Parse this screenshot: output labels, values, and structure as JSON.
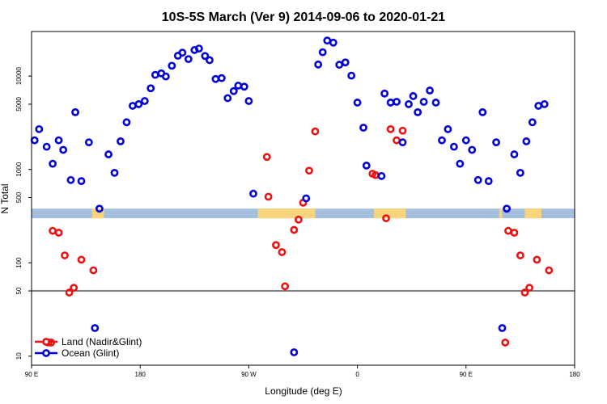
{
  "chart_data": {
    "type": "scatter",
    "title": "10S-5S March (Ver 9)   2014-09-06 to 2020-01-21",
    "xlabel": "Longitude (deg E)",
    "ylabel": "N Total",
    "xlim": [
      90,
      450
    ],
    "ylim": [
      8,
      30000
    ],
    "y_scale": "log",
    "x_ticks": [
      {
        "value": 90,
        "label": "90 E"
      },
      {
        "value": 162,
        "label": "180"
      },
      {
        "value": 234,
        "label": "90 W"
      },
      {
        "value": 306,
        "label": "0"
      },
      {
        "value": 378,
        "label": "90 E"
      },
      {
        "value": 450,
        "label": "180"
      }
    ],
    "y_ticks": [
      {
        "value": 10,
        "label": "10"
      },
      {
        "value": 50,
        "label": "50"
      },
      {
        "value": 100,
        "label": "100"
      },
      {
        "value": 500,
        "label": "500"
      },
      {
        "value": 1000,
        "label": "1000"
      },
      {
        "value": 5000,
        "label": "5000"
      },
      {
        "value": 10000,
        "label": "10000"
      }
    ],
    "reference_line": 50,
    "land_band": {
      "y_low": 300,
      "y_high": 380,
      "ocean_color": "#a4bede",
      "land_color": "#f8d47c"
    },
    "land_segments": [
      [
        130,
        138
      ],
      [
        240,
        278
      ],
      [
        317,
        338
      ],
      [
        400,
        402
      ],
      [
        417,
        428
      ]
    ],
    "legend": {
      "position": "bottom-left",
      "entries": [
        {
          "label": "Land (Nadir&Glint)",
          "color": "#ee1111"
        },
        {
          "label": "Ocean (Glint)",
          "color": "#0000dd"
        }
      ]
    },
    "grid": false,
    "series": [
      {
        "name": "Land (Nadir&Glint)",
        "color": "#ee1111",
        "points": [
          [
            101,
            14
          ],
          [
            103,
            14
          ],
          [
            104,
            220
          ],
          [
            108,
            210
          ],
          [
            112,
            120
          ],
          [
            115,
            48
          ],
          [
            118,
            54
          ],
          [
            123,
            108
          ],
          [
            131,
            83
          ],
          [
            246,
            1360
          ],
          [
            247,
            510
          ],
          [
            252,
            155
          ],
          [
            256,
            130
          ],
          [
            258,
            56
          ],
          [
            264,
            225
          ],
          [
            267,
            290
          ],
          [
            270,
            440
          ],
          [
            274,
            970
          ],
          [
            278,
            2550
          ],
          [
            316,
            900
          ],
          [
            318,
            870
          ],
          [
            325,
            300
          ],
          [
            328,
            2700
          ],
          [
            332,
            2050
          ],
          [
            336,
            2600
          ],
          [
            404,
            14
          ],
          [
            406,
            220
          ],
          [
            410,
            210
          ],
          [
            414,
            120
          ],
          [
            417,
            48
          ],
          [
            420,
            54
          ],
          [
            425,
            108
          ],
          [
            433,
            83
          ]
        ]
      },
      {
        "name": "Ocean (Glint)",
        "color": "#0000dd",
        "points": [
          [
            92,
            2050
          ],
          [
            95,
            2700
          ],
          [
            100,
            1750
          ],
          [
            104,
            1150
          ],
          [
            108,
            2050
          ],
          [
            111,
            1620
          ],
          [
            116,
            770
          ],
          [
            119,
            4100
          ],
          [
            123,
            750
          ],
          [
            128,
            1950
          ],
          [
            132,
            20
          ],
          [
            135,
            380
          ],
          [
            141,
            1450
          ],
          [
            145,
            920
          ],
          [
            149,
            2000
          ],
          [
            153,
            3200
          ],
          [
            157,
            4800
          ],
          [
            161,
            5000
          ],
          [
            165,
            5400
          ],
          [
            169,
            7400
          ],
          [
            172,
            10300
          ],
          [
            176,
            10700
          ],
          [
            179,
            9900
          ],
          [
            183,
            12900
          ],
          [
            187,
            16500
          ],
          [
            190,
            17800
          ],
          [
            194,
            15200
          ],
          [
            198,
            19000
          ],
          [
            201,
            19700
          ],
          [
            205,
            16400
          ],
          [
            208,
            14800
          ],
          [
            212,
            9300
          ],
          [
            216,
            9500
          ],
          [
            220,
            5800
          ],
          [
            224,
            6900
          ],
          [
            227,
            7900
          ],
          [
            231,
            7700
          ],
          [
            234,
            5400
          ],
          [
            237,
            550
          ],
          [
            264,
            11
          ],
          [
            272,
            490
          ],
          [
            280,
            13300
          ],
          [
            283,
            18000
          ],
          [
            286,
            24000
          ],
          [
            290,
            22800
          ],
          [
            294,
            13200
          ],
          [
            298,
            14000
          ],
          [
            302,
            10100
          ],
          [
            306,
            5200
          ],
          [
            310,
            2800
          ],
          [
            312,
            1100
          ],
          [
            322,
            850
          ],
          [
            324,
            6500
          ],
          [
            328,
            5200
          ],
          [
            332,
            5300
          ],
          [
            336,
            1950
          ],
          [
            340,
            5000
          ],
          [
            343,
            6100
          ],
          [
            346,
            4100
          ],
          [
            350,
            5300
          ],
          [
            354,
            7000
          ],
          [
            358,
            5200
          ],
          [
            362,
            2050
          ],
          [
            366,
            2700
          ],
          [
            370,
            1750
          ],
          [
            374,
            1150
          ],
          [
            378,
            2050
          ],
          [
            382,
            1620
          ],
          [
            386,
            770
          ],
          [
            389,
            4100
          ],
          [
            393,
            750
          ],
          [
            398,
            1950
          ],
          [
            402,
            20
          ],
          [
            405,
            380
          ],
          [
            410,
            1450
          ],
          [
            414,
            920
          ],
          [
            418,
            2000
          ],
          [
            422,
            3200
          ],
          [
            426,
            4800
          ],
          [
            430,
            5000
          ]
        ]
      }
    ]
  }
}
